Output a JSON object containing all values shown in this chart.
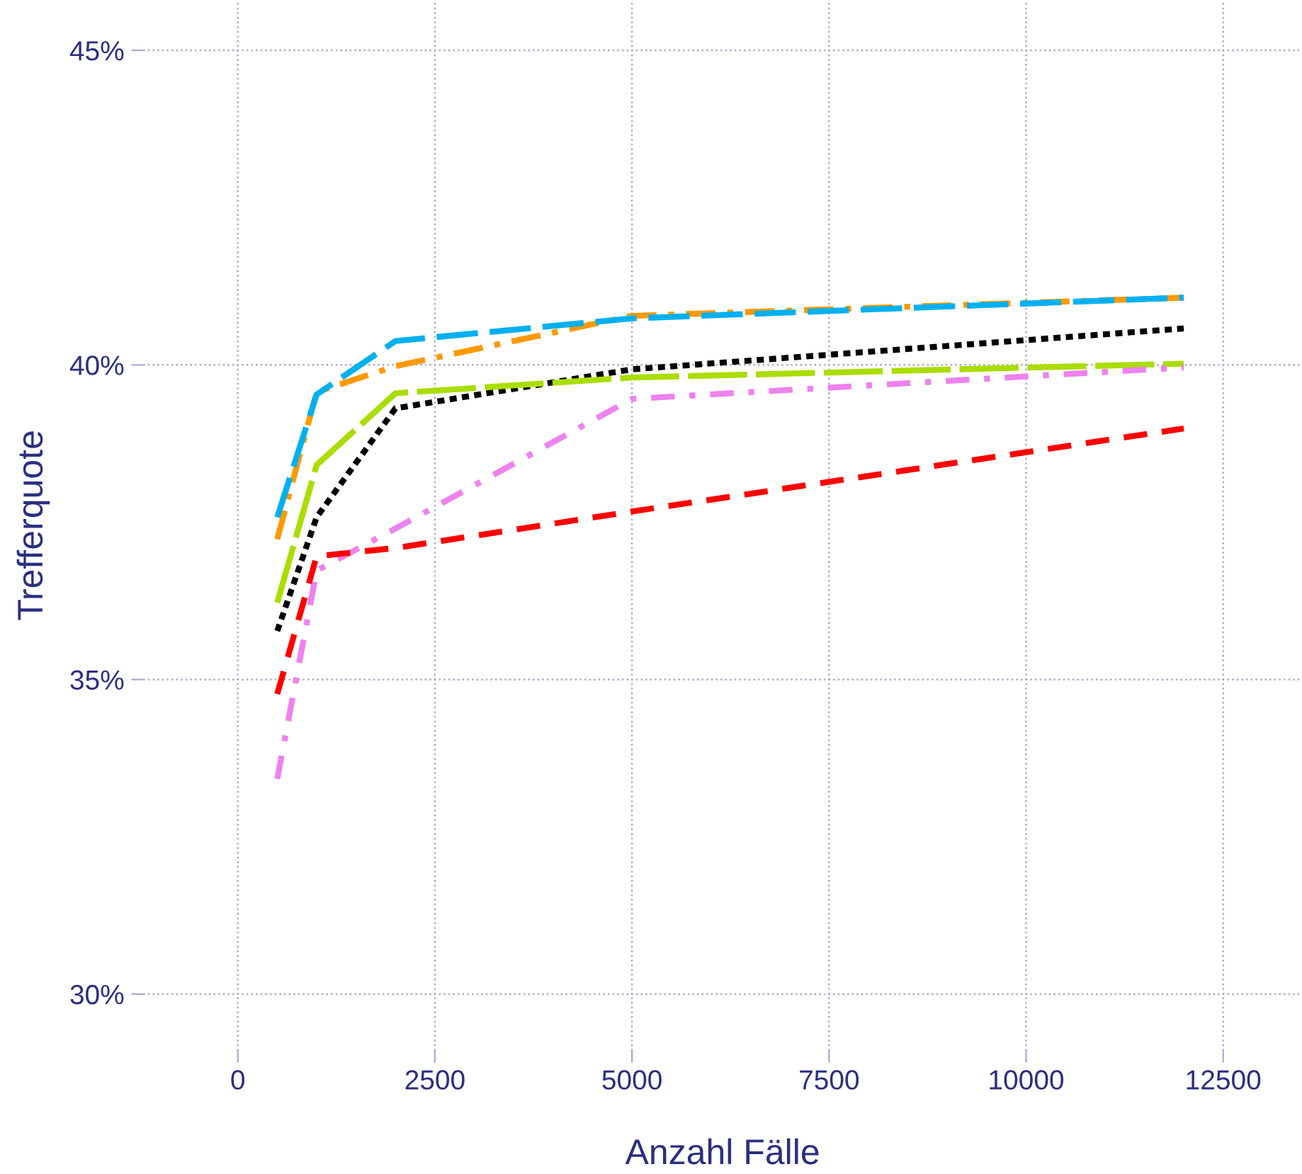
{
  "chart_data": {
    "type": "line",
    "xlabel": "Anzahl Fälle",
    "ylabel": "Trefferquote",
    "x": [
      500,
      1000,
      2000,
      5000,
      12000
    ],
    "series": [
      {
        "color": "#ff9900",
        "line_style": "dashdot",
        "values": [
          37.23,
          39.57,
          39.98,
          40.78,
          41.07
        ]
      },
      {
        "color": "#00b0f0",
        "line_style": "longdash",
        "values": [
          37.58,
          39.53,
          40.38,
          40.74,
          41.07
        ]
      },
      {
        "color": "#000000",
        "line_style": "dotted",
        "values": [
          35.77,
          37.58,
          39.31,
          39.93,
          40.58
        ]
      },
      {
        "color": "#aadd00",
        "line_style": "longdash2",
        "values": [
          36.22,
          38.41,
          39.55,
          39.8,
          40.02
        ]
      },
      {
        "color": "#ee82ee",
        "line_style": "dashdot2",
        "values": [
          33.42,
          36.73,
          37.4,
          39.46,
          39.96
        ]
      },
      {
        "color": "#ff0000",
        "line_style": "dashed",
        "values": [
          34.77,
          36.96,
          37.09,
          37.67,
          38.99
        ]
      }
    ],
    "xlim": [
      -1200,
      13500
    ],
    "xticks": [
      0,
      2500,
      5000,
      7500,
      10000,
      12500
    ],
    "ylim": [
      29.1,
      45.8
    ],
    "yticks": [
      {
        "value": 30,
        "label": "30%"
      },
      {
        "value": 35,
        "label": "35%"
      },
      {
        "value": 40,
        "label": "40%"
      },
      {
        "value": 45,
        "label": "45%"
      }
    ],
    "grid": true,
    "legend": false
  }
}
